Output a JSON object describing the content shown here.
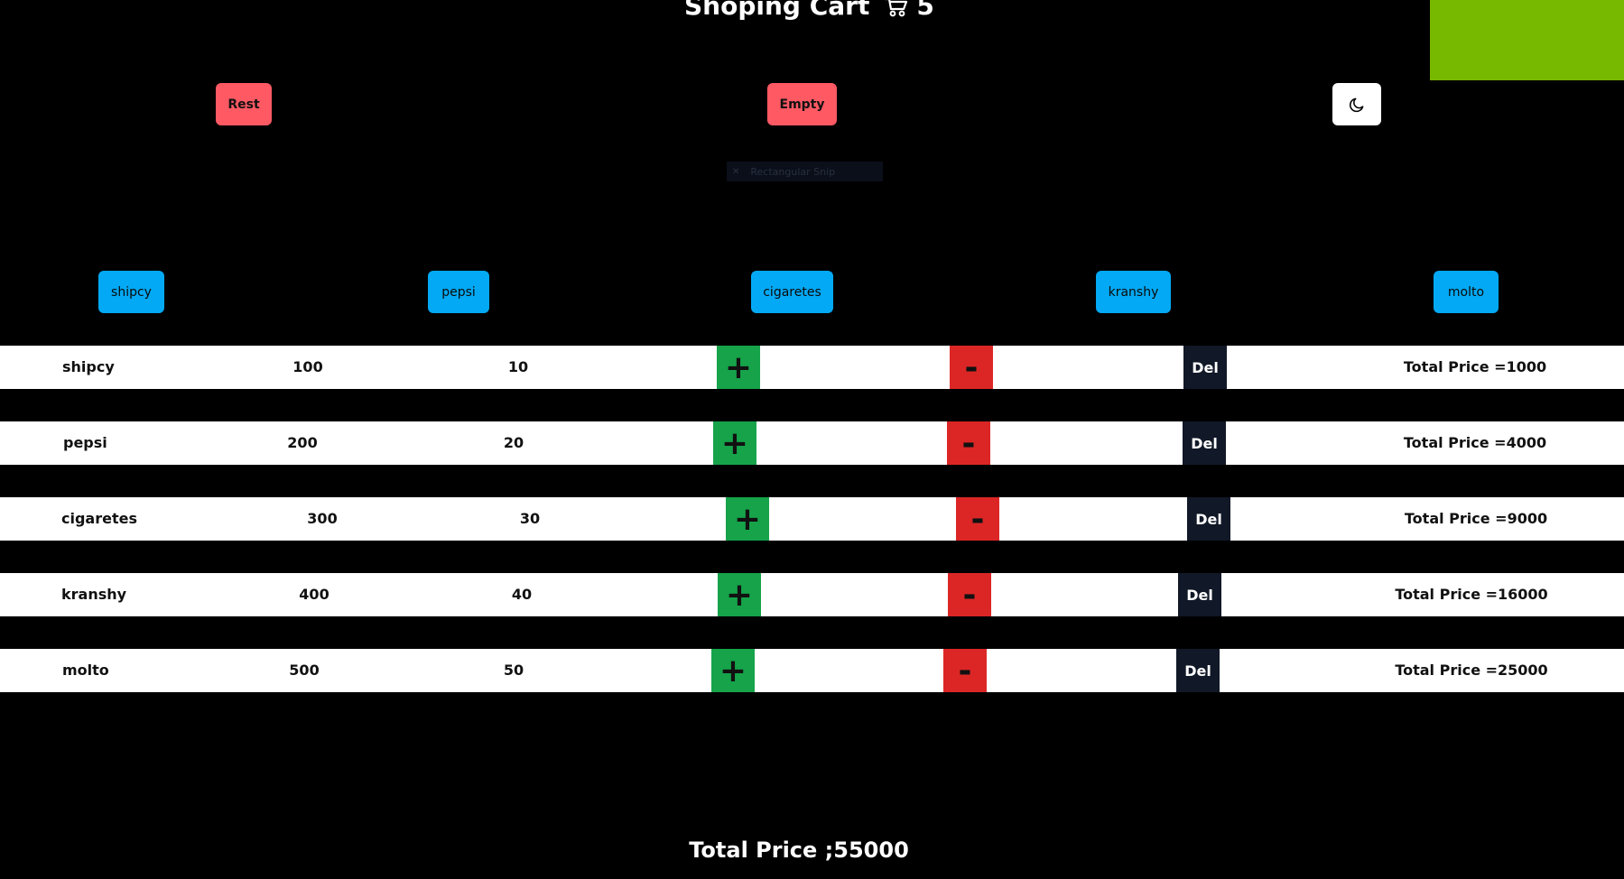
{
  "header": {
    "title": "Shoping Cart",
    "cart_count": "5"
  },
  "toolbar": {
    "rest_label": "Rest",
    "empty_label": "Empty",
    "theme_icon": "moon-icon"
  },
  "snip_overlay": {
    "label": "Rectangular Snip"
  },
  "products": [
    {
      "label": "shipcy"
    },
    {
      "label": "pepsi"
    },
    {
      "label": "cigaretes"
    },
    {
      "label": "kranshy"
    },
    {
      "label": "molto"
    }
  ],
  "cart": {
    "rows": [
      {
        "name": "shipcy",
        "price": "100",
        "quantity": "10",
        "inc_label": "+",
        "dec_label": "-",
        "del_label": "Del",
        "total": "Total Price =1000"
      },
      {
        "name": "pepsi",
        "price": "200",
        "quantity": "20",
        "inc_label": "+",
        "dec_label": "-",
        "del_label": "Del",
        "total": "Total Price =4000"
      },
      {
        "name": "cigaretes",
        "price": "300",
        "quantity": "30",
        "inc_label": "+",
        "dec_label": "-",
        "del_label": "Del",
        "total": "Total Price =9000"
      },
      {
        "name": "kranshy",
        "price": "400",
        "quantity": "40",
        "inc_label": "+",
        "dec_label": "-",
        "del_label": "Del",
        "total": "Total Price =16000"
      },
      {
        "name": "molto",
        "price": "500",
        "quantity": "50",
        "inc_label": "+",
        "dec_label": "-",
        "del_label": "Del",
        "total": "Total Price =25000"
      }
    ]
  },
  "footer": {
    "grand_total": "Total Price ;55000"
  },
  "colors": {
    "background": "#000000",
    "accent_green": "#77b800",
    "action_red": "#ff5964",
    "product_blue": "#03a9f4",
    "increment_green": "#16a34a",
    "decrement_red": "#dc2626",
    "delete_dark": "#111827"
  }
}
